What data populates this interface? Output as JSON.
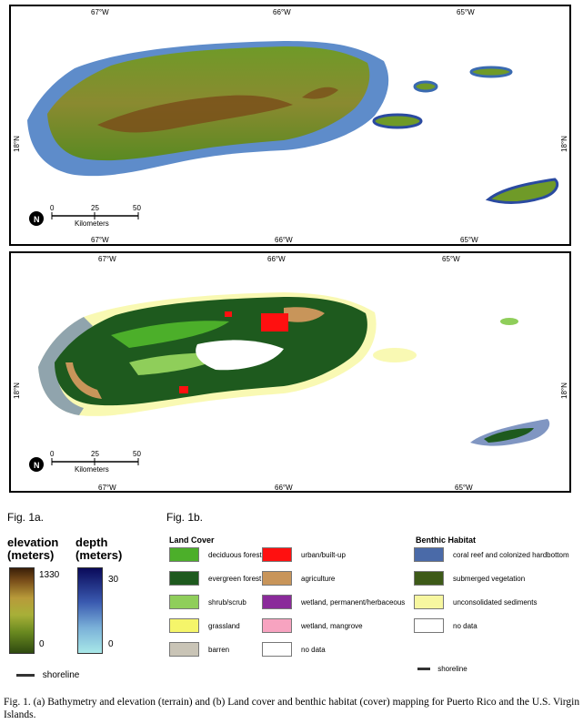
{
  "map_a": {
    "top_ticks": [
      "67°W",
      "66°W",
      "65°W"
    ],
    "bottom_ticks": [
      "67°W",
      "66°W",
      "65°W"
    ],
    "side_tick": "18°N",
    "north_label": "N",
    "scale_ticks": [
      "0",
      "25",
      "50"
    ],
    "scale_unit": "Kilometers"
  },
  "map_b": {
    "top_ticks": [
      "67°W",
      "66°W",
      "65°W"
    ],
    "bottom_ticks": [
      "67°W",
      "66°W",
      "65°W"
    ],
    "side_tick": "18°N",
    "north_label": "N",
    "scale_ticks": [
      "0",
      "25",
      "50"
    ],
    "scale_unit": "Kilometers"
  },
  "fig_a_label": "Fig. 1a.",
  "fig_b_label": "Fig. 1b.",
  "elevation_legend": {
    "title_line1": "elevation",
    "title_line2": "(meters)",
    "max": "1330",
    "min": "0"
  },
  "depth_legend": {
    "title_line1": "depth",
    "title_line2": "(meters)",
    "max": "30",
    "min": "0"
  },
  "shoreline_label_a": "shoreline",
  "land_cover": {
    "title": "Land Cover",
    "items": [
      {
        "label": "deciduous forest",
        "color": "#4caf2a"
      },
      {
        "label": "evergreen forest",
        "color": "#1e5a1e"
      },
      {
        "label": "shrub/scrub",
        "color": "#8fce5a"
      },
      {
        "label": "grassland",
        "color": "#f5f56a"
      },
      {
        "label": "barren",
        "color": "#c9c4b6"
      },
      {
        "label": "urban/built-up",
        "color": "#ff1010"
      },
      {
        "label": "agriculture",
        "color": "#c8955a"
      },
      {
        "label": "wetland, permanent/herbaceous",
        "color": "#8a2a9a"
      },
      {
        "label": "wetland, mangrove",
        "color": "#f7a3c0"
      },
      {
        "label": "no data",
        "color": "#ffffff"
      }
    ]
  },
  "benthic_habitat": {
    "title": "Benthic Habitat",
    "items": [
      {
        "label": "coral reef and colonized hardbottom",
        "color": "#4a6aa8"
      },
      {
        "label": "submerged vegetation",
        "color": "#3d5a18"
      },
      {
        "label": "unconsolidated sediments",
        "color": "#f7f7a0"
      },
      {
        "label": "no data",
        "color": "#ffffff"
      }
    ],
    "shoreline_label": "shoreline"
  },
  "figure_caption": "Fig. 1. (a) Bathymetry and elevation (terrain) and (b) Land cover and benthic habitat (cover) mapping for Puerto Rico and the U.S. Virgin Islands.",
  "colors": {
    "elevation_ramp": [
      "#2f4a10",
      "#8aa832",
      "#c8b850",
      "#7a4f1a",
      "#3a1f08"
    ],
    "depth_ramp": [
      "#9fe0e0",
      "#6a9ad0",
      "#2a3a9a",
      "#0a0a5a"
    ]
  }
}
